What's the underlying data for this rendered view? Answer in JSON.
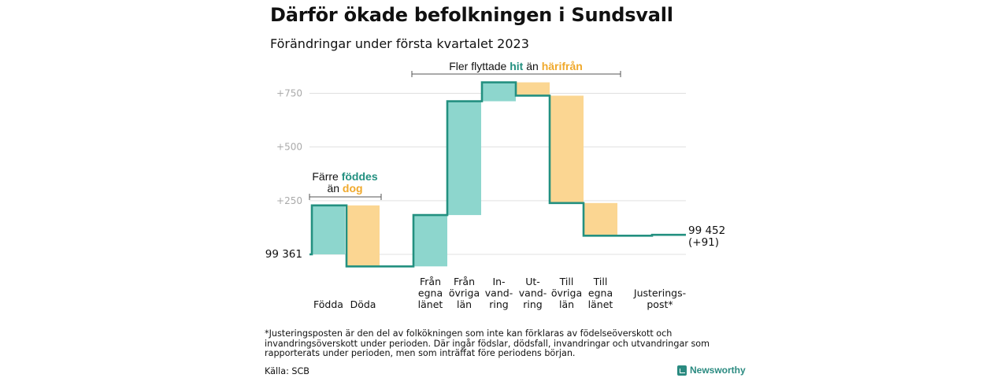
{
  "title": "Därför ökade befolkningen i Sundsvall",
  "subtitle": "Förändringar under första kvartalet 2023",
  "colors": {
    "increase": "#8dd6cd",
    "decrease": "#fbd692",
    "adjustment": "#cccccc",
    "line": "#239080",
    "accent_teal": "#239080",
    "accent_orange": "#f0a92c"
  },
  "annotations": {
    "top_prefix": "Fler flyttade ",
    "top_hit": "hit",
    "top_mid": " än ",
    "top_harifran": "härifrån",
    "left_prefix": "Färre ",
    "left_fodde": "föddes",
    "left_line2_prefix": "än ",
    "left_dog": "dog"
  },
  "chart_data": {
    "type": "waterfall",
    "start_label": "99 361",
    "end_label_value": "99 452",
    "end_label_change": "(+91)",
    "yticks": [
      "+250",
      "+500",
      "+750"
    ],
    "ylim": [
      -55,
      800
    ],
    "base": 99361,
    "steps": [
      {
        "label": [
          "Födda"
        ],
        "change": 228
      },
      {
        "label": [
          "Döda"
        ],
        "change": -284
      },
      {
        "label": [
          "Från",
          "egna",
          "länet"
        ],
        "change": 239
      },
      {
        "label": [
          "Från",
          "övriga",
          "län"
        ],
        "change": 530
      },
      {
        "label": [
          "In-",
          "vand-",
          "ring"
        ],
        "change": 88
      },
      {
        "label": [
          "Ut-",
          "vand-",
          "ring"
        ],
        "change": -62
      },
      {
        "label": [
          "Till",
          "övriga",
          "län"
        ],
        "change": -500
      },
      {
        "label": [
          "Till",
          "egna",
          "länet"
        ],
        "change": -152
      },
      {
        "label": [
          "Justerings-",
          "post*"
        ],
        "change": 4
      }
    ]
  },
  "footnote": "*Justeringsposten är den del av folkökningen som inte kan förklaras av födelseöverskott och invandringsöverskott under perioden. Där ingår födslar, dödsfall, invandringar och utvandringar som rapporterats under perioden, men som inträffat före periodens början.",
  "source": "Källa: SCB",
  "brand": "Newsworthy"
}
